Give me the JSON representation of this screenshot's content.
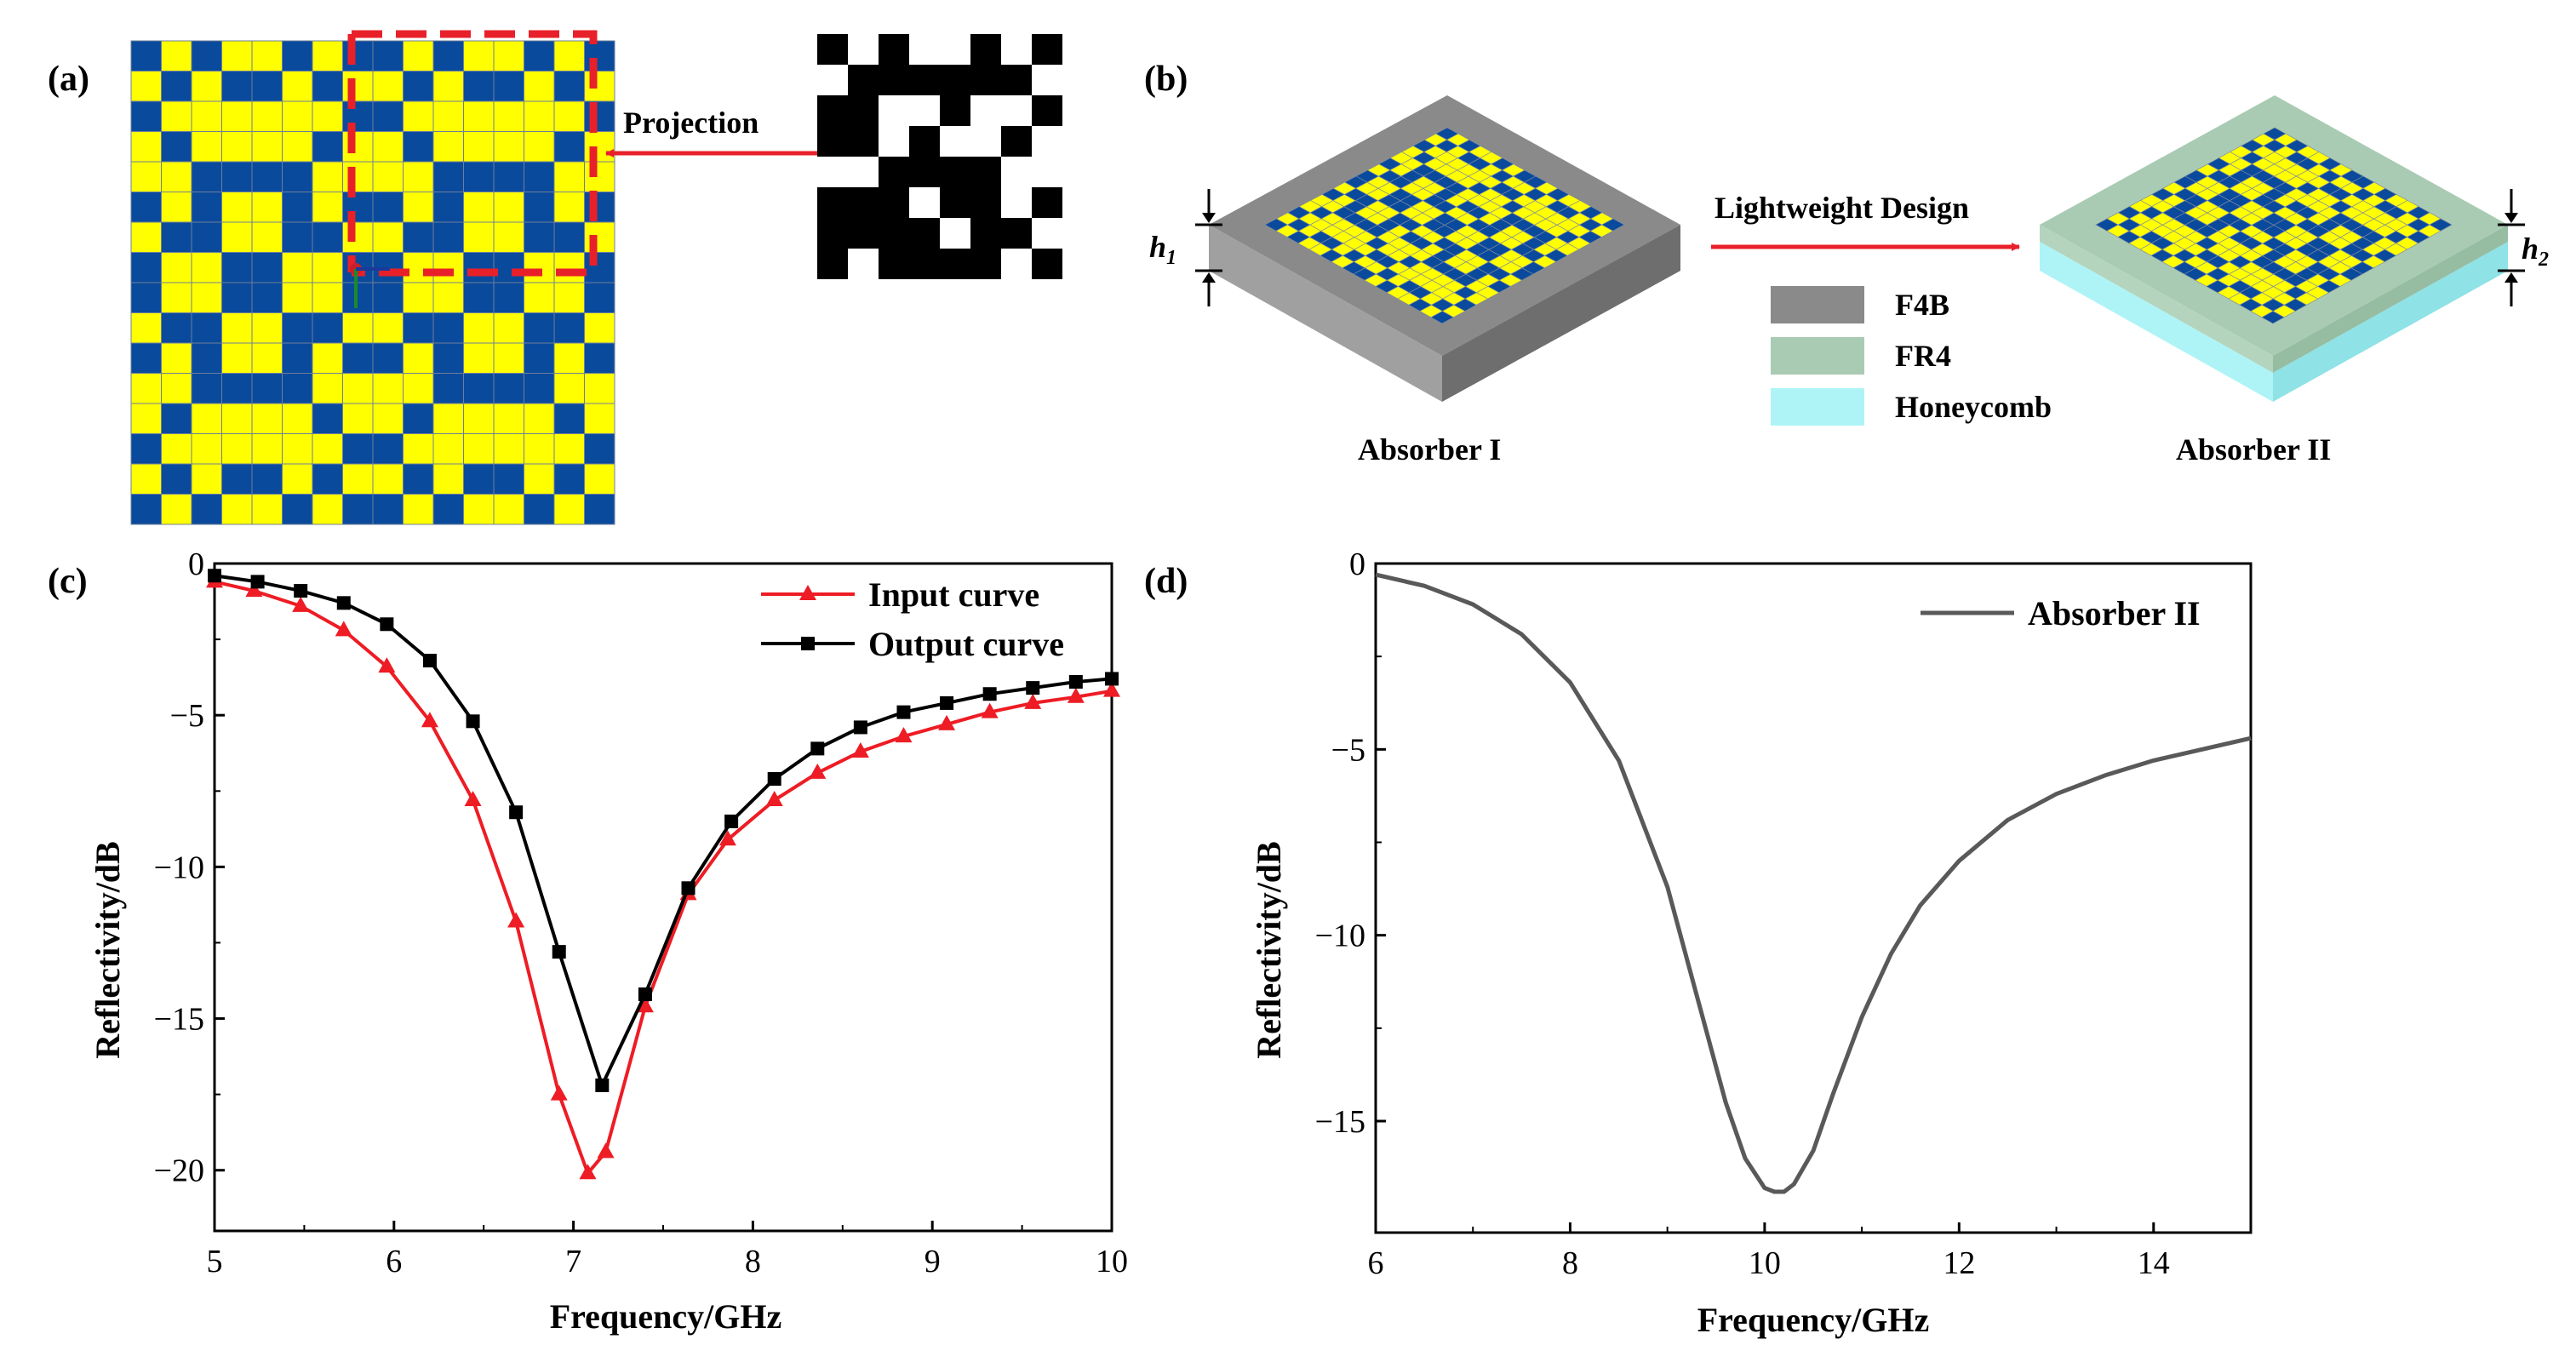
{
  "panel_a": {
    "label": "(a)",
    "projection_label": "Projection",
    "colors": {
      "blue": "#0a4a9c",
      "yellow": "#ffff00",
      "grid": "#6e7f9a",
      "red": "#e8202a"
    }
  },
  "panel_b": {
    "label": "(b)",
    "arrow_label": "Lightweight Design",
    "h1": "h",
    "h1_sub": "1",
    "h2": "h",
    "h2_sub": "2",
    "absorber1": "Absorber I",
    "absorber2": "Absorber II",
    "legend": [
      {
        "label": "F4B",
        "color": "#8a8a8a"
      },
      {
        "label": "FR4",
        "color": "#a9cbb3"
      },
      {
        "label": "Honeycomb",
        "color": "#aef4f6"
      }
    ]
  },
  "chart_data": [
    {
      "type": "line",
      "panel_label": "(c)",
      "title": "",
      "xlabel": "Frequency/GHz",
      "ylabel": "Reflectivity/dB",
      "xlim": [
        5,
        10
      ],
      "ylim": [
        -22,
        0
      ],
      "xticks": [
        5,
        6,
        7,
        8,
        9,
        10
      ],
      "yticks": [
        0,
        -5,
        -10,
        -15,
        -20
      ],
      "legend_position": "top-right",
      "series": [
        {
          "name": "Input curve",
          "color": "#ee1c24",
          "marker": "triangle",
          "x": [
            5.0,
            5.22,
            5.48,
            5.72,
            5.96,
            6.2,
            6.44,
            6.68,
            6.92,
            7.08,
            7.18,
            7.4,
            7.64,
            7.86,
            8.12,
            8.36,
            8.6,
            8.84,
            9.08,
            9.32,
            9.56,
            9.8,
            10.0
          ],
          "y": [
            -0.6,
            -0.9,
            -1.4,
            -2.2,
            -3.4,
            -5.2,
            -7.8,
            -11.8,
            -17.5,
            -20.1,
            -19.4,
            -14.6,
            -10.9,
            -9.1,
            -7.8,
            -6.9,
            -6.2,
            -5.7,
            -5.3,
            -4.9,
            -4.6,
            -4.4,
            -4.2
          ]
        },
        {
          "name": "Output curve",
          "color": "#000000",
          "marker": "square",
          "x": [
            5.0,
            5.24,
            5.48,
            5.72,
            5.96,
            6.2,
            6.44,
            6.68,
            6.92,
            7.16,
            7.4,
            7.64,
            7.88,
            8.12,
            8.36,
            8.6,
            8.84,
            9.08,
            9.32,
            9.56,
            9.8,
            10.0
          ],
          "y": [
            -0.4,
            -0.6,
            -0.9,
            -1.3,
            -2.0,
            -3.2,
            -5.2,
            -8.2,
            -12.8,
            -17.2,
            -14.2,
            -10.7,
            -8.5,
            -7.1,
            -6.1,
            -5.4,
            -4.9,
            -4.6,
            -4.3,
            -4.1,
            -3.9,
            -3.8
          ]
        }
      ]
    },
    {
      "type": "line",
      "panel_label": "(d)",
      "title": "",
      "xlabel": "Frequency/GHz",
      "ylabel": "Reflectivity/dB",
      "xlim": [
        6,
        15
      ],
      "ylim": [
        -18,
        0
      ],
      "xticks": [
        6,
        8,
        10,
        12,
        14
      ],
      "yticks": [
        0,
        -5,
        -10,
        -15
      ],
      "legend_position": "top-right",
      "series": [
        {
          "name": "Absorber II",
          "color": "#595959",
          "marker": "none",
          "x": [
            6.0,
            6.5,
            7.0,
            7.5,
            8.0,
            8.5,
            9.0,
            9.3,
            9.6,
            9.8,
            10.0,
            10.1,
            10.2,
            10.3,
            10.5,
            10.7,
            11.0,
            11.3,
            11.6,
            12.0,
            12.5,
            13.0,
            13.5,
            14.0,
            14.5,
            15.0
          ],
          "y": [
            -0.3,
            -0.6,
            -1.1,
            -1.9,
            -3.2,
            -5.3,
            -8.7,
            -11.6,
            -14.5,
            -16.0,
            -16.8,
            -16.9,
            -16.9,
            -16.7,
            -15.8,
            -14.3,
            -12.2,
            -10.5,
            -9.2,
            -8.0,
            -6.9,
            -6.2,
            -5.7,
            -5.3,
            -5.0,
            -4.7
          ]
        }
      ]
    }
  ]
}
